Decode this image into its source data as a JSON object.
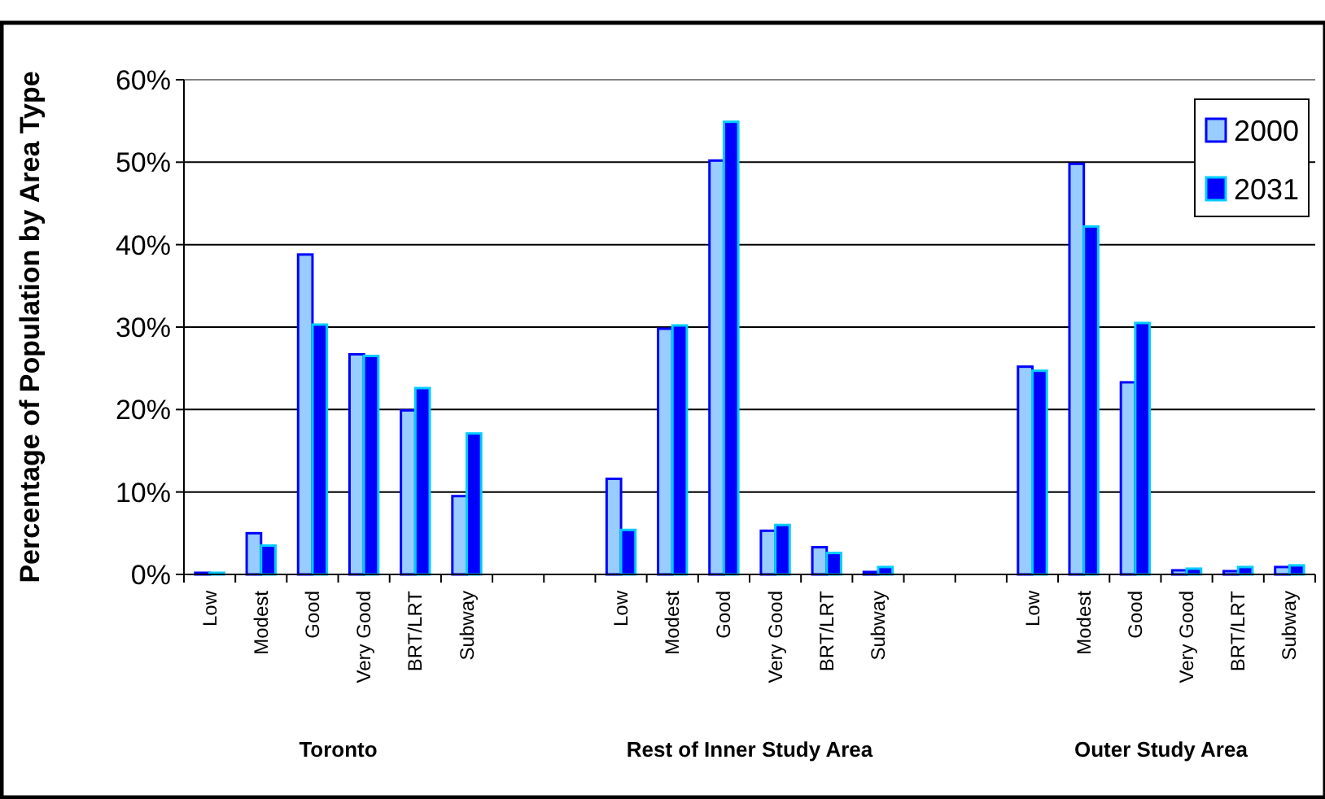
{
  "chart_data": {
    "type": "bar",
    "ylabel": "Percentage of Population by Area Type",
    "categories": [
      "Low",
      "Modest",
      "Good",
      "Very Good",
      "BRT/LRT",
      "Subway",
      null,
      null,
      "Low",
      "Modest",
      "Good",
      "Very Good",
      "BRT/LRT",
      "Subway",
      null,
      null,
      "Low",
      "Modest",
      "Good",
      "Very Good",
      "BRT/LRT",
      "Subway"
    ],
    "series": [
      {
        "name": "2000",
        "color": "#99ccff",
        "values": [
          0.2,
          5.0,
          38.8,
          26.7,
          19.9,
          9.5,
          null,
          null,
          11.6,
          29.8,
          50.2,
          5.3,
          3.3,
          0.3,
          null,
          null,
          25.2,
          49.8,
          23.3,
          0.5,
          0.4,
          0.9
        ]
      },
      {
        "name": "2031",
        "color": "#0000ff",
        "values": [
          0.2,
          3.5,
          30.3,
          26.5,
          22.6,
          17.1,
          null,
          null,
          5.4,
          30.2,
          54.9,
          6.0,
          2.6,
          0.9,
          null,
          null,
          24.7,
          42.2,
          30.5,
          0.7,
          0.9,
          1.1
        ]
      }
    ],
    "ylim": [
      0,
      60
    ],
    "yticks": [
      {
        "value": 0,
        "label": "0%"
      },
      {
        "value": 10,
        "label": "10%"
      },
      {
        "value": 20,
        "label": "20%"
      },
      {
        "value": 30,
        "label": "30%"
      },
      {
        "value": 40,
        "label": "40%"
      },
      {
        "value": 50,
        "label": "50%"
      },
      {
        "value": 60,
        "label": "60%"
      }
    ],
    "grid": "y",
    "legend": "top right",
    "annotations": [
      "Toronto",
      "Rest of Inner Study Area",
      "Outer Study Area"
    ]
  }
}
